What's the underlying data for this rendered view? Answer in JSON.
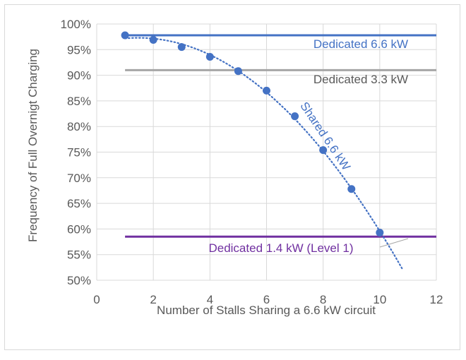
{
  "chart_data": {
    "type": "scatter",
    "title": "",
    "xlabel": "Number of Stalls Sharing a 6.6 kW circuit",
    "ylabel": "Frequency of Full Overnigt Charging",
    "xlim": [
      0,
      12
    ],
    "ylim": [
      50,
      100
    ],
    "x_ticks": [
      "0",
      "2",
      "4",
      "6",
      "8",
      "10",
      "12"
    ],
    "y_ticks": [
      "50%",
      "55%",
      "60%",
      "65%",
      "70%",
      "75%",
      "80%",
      "85%",
      "90%",
      "95%",
      "100%"
    ],
    "grid": true,
    "legend": "none",
    "series": [
      {
        "name": "Shared 6.6 kW",
        "color": "#4472c4",
        "x": [
          1,
          2,
          3,
          4,
          5,
          6,
          7,
          8,
          9,
          10
        ],
        "y": [
          97.8,
          96.9,
          95.5,
          93.6,
          90.8,
          87.0,
          82.0,
          75.4,
          67.8,
          59.3
        ],
        "trendline": "dotted",
        "trend_x_end": 10.8,
        "trend_y_end": 50
      }
    ],
    "reference_lines": [
      {
        "label": "Dedicated 6.6 kW",
        "y": 97.8,
        "x_start": 1,
        "x_end": 12,
        "color": "#4472c4",
        "label_color": "#4472c4"
      },
      {
        "label": "Dedicated 3.3 kW",
        "y": 91.0,
        "x_start": 1,
        "x_end": 12,
        "color": "#a6a6a6",
        "label_color": "#595959"
      },
      {
        "label": "Dedicated 1.4 kW (Level 1)",
        "y": 58.5,
        "x_start": 1,
        "x_end": 12,
        "color": "#7030a0",
        "label_color": "#7030a0"
      }
    ]
  }
}
